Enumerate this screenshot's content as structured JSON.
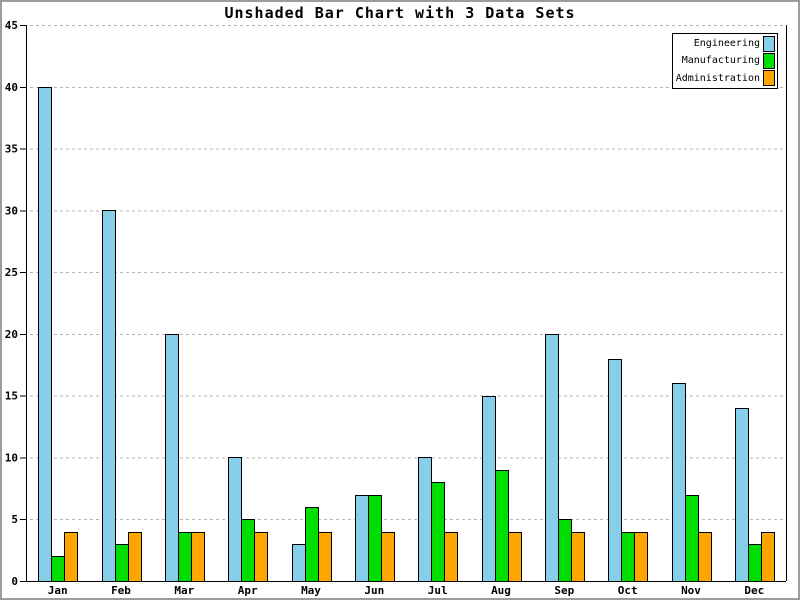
{
  "page": {
    "background_color": "#ffffff",
    "outer_border_color": "#9c9c9c"
  },
  "chart_data": {
    "type": "bar",
    "title": "Unshaded Bar Chart with 3 Data Sets",
    "categories": [
      "Jan",
      "Feb",
      "Mar",
      "Apr",
      "May",
      "Jun",
      "Jul",
      "Aug",
      "Sep",
      "Oct",
      "Nov",
      "Dec"
    ],
    "series": [
      {
        "name": "Engineering",
        "color": "#87CEEB",
        "values": [
          40,
          30,
          20,
          10,
          3,
          7,
          10,
          15,
          20,
          18,
          16,
          14
        ]
      },
      {
        "name": "Manufacturing",
        "color": "#00DD00",
        "values": [
          2,
          3,
          4,
          5,
          6,
          7,
          8,
          9,
          5,
          4,
          7,
          3
        ]
      },
      {
        "name": "Administration",
        "color": "#FFA500",
        "values": [
          4,
          4,
          4,
          4,
          4,
          4,
          4,
          4,
          4,
          4,
          4,
          4
        ]
      }
    ],
    "xlabel": "",
    "ylabel": "",
    "ylim": [
      0,
      45
    ],
    "yticks": [
      0,
      5,
      10,
      15,
      20,
      25,
      30,
      35,
      40,
      45
    ],
    "grid": "horizontal-dashed",
    "gridline_color": "#b4b4b4",
    "axis_color": "#000000",
    "bar_outline_color": "#000000",
    "legend_position": "top-right",
    "legend_border_color": "#000000"
  }
}
